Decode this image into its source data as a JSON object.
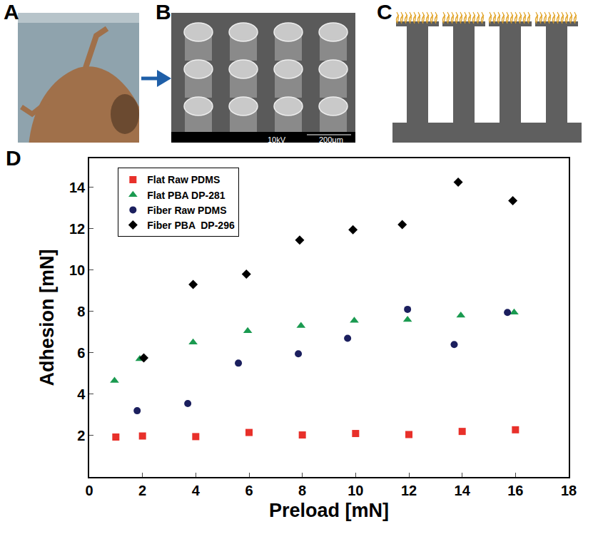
{
  "panels": [
    {
      "letter": "A"
    },
    {
      "letter": "B",
      "caption": [
        "10kV",
        "200μm"
      ]
    },
    {
      "letter": "C"
    },
    {
      "letter": "D"
    }
  ],
  "chart_data": {
    "type": "scatter",
    "x_label": "Preload [mN]",
    "y_label": "Adhesion [mN]",
    "xlim": [
      0,
      18
    ],
    "xticks": [
      0,
      2,
      4,
      6,
      8,
      10,
      12,
      14,
      16,
      18
    ],
    "ylim": [
      0,
      15.4
    ],
    "yticks": [
      2,
      4,
      6,
      8,
      10,
      12,
      14
    ],
    "grid": false,
    "legend": "upper left",
    "series": [
      {
        "name": "Flat Raw PDMS",
        "color": "#e8302a",
        "marker": "square",
        "x": [
          1,
          2,
          4,
          6,
          8,
          10,
          12,
          14,
          16
        ],
        "values": [
          1.93,
          1.98,
          1.95,
          2.15,
          2.03,
          2.1,
          2.05,
          2.2,
          2.28
        ]
      },
      {
        "name": "Flat PBA DP-281",
        "color": "#1a9a50",
        "marker": "triangle-up",
        "x": [
          0.95,
          1.9,
          3.9,
          5.95,
          7.95,
          9.95,
          11.95,
          13.95,
          15.95
        ],
        "values": [
          4.65,
          5.7,
          6.5,
          7.05,
          7.3,
          7.55,
          7.6,
          7.8,
          7.95
        ]
      },
      {
        "name": "Fiber Raw PDMS",
        "color": "#1b1f5e",
        "marker": "circle",
        "x": [
          1.8,
          3.7,
          5.6,
          7.85,
          9.7,
          11.95,
          13.7,
          15.7
        ],
        "values": [
          3.2,
          3.55,
          5.5,
          5.95,
          6.7,
          8.1,
          6.4,
          7.95
        ]
      },
      {
        "name": "Fiber PBA  DP-296",
        "color": "#000000",
        "marker": "diamond",
        "x": [
          2.05,
          3.9,
          5.9,
          7.9,
          9.9,
          11.75,
          13.85,
          15.9
        ],
        "values": [
          5.75,
          9.3,
          9.8,
          11.45,
          11.95,
          12.2,
          14.25,
          13.35
        ]
      }
    ]
  }
}
